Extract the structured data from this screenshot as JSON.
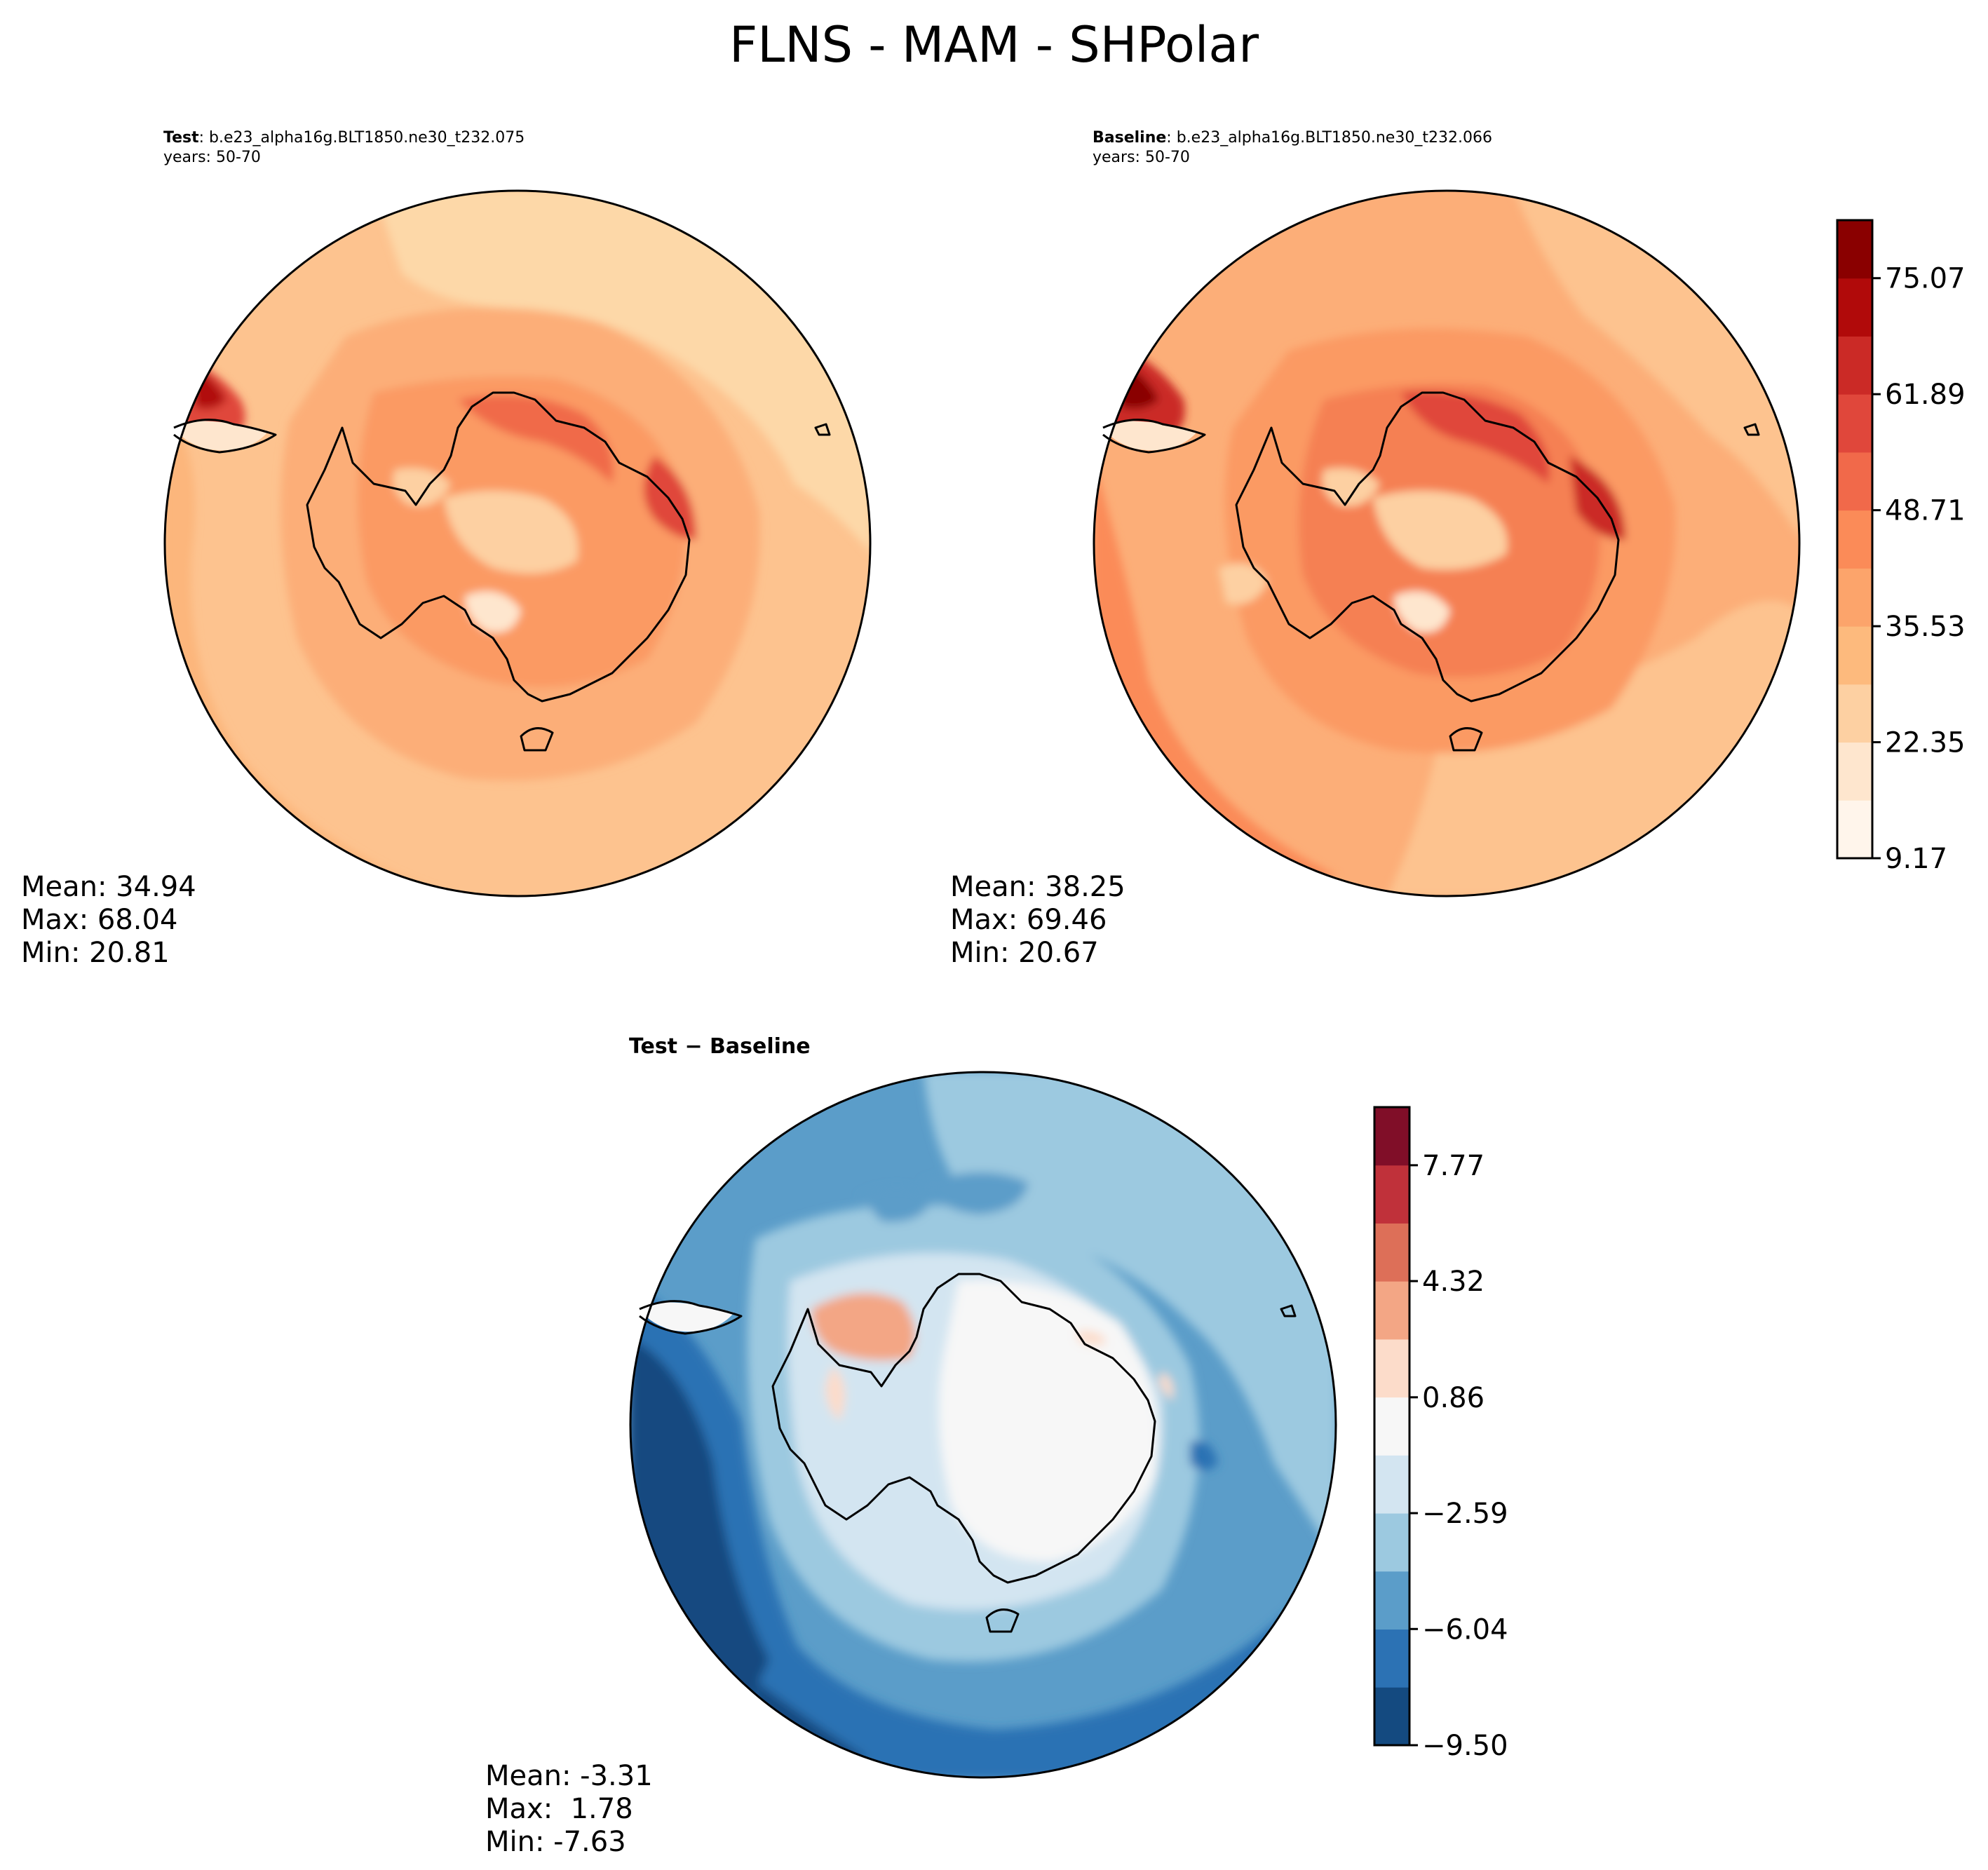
{
  "figure": {
    "title": "FLNS - MAM - SHPolar"
  },
  "panels": {
    "test": {
      "label": "Test",
      "case": ": b.e23_alpha16g.BLT1850.ne30_t232.075",
      "years": "years: 50-70",
      "stats": {
        "mean": "Mean: 34.94",
        "max": "Max: 68.04",
        "min": "Min: 20.81"
      }
    },
    "baseline": {
      "label": "Baseline",
      "case": ": b.e23_alpha16g.BLT1850.ne30_t232.066",
      "years": "years: 50-70",
      "stats": {
        "mean": "Mean: 38.25",
        "max": "Max: 69.46",
        "min": "Min: 20.67"
      }
    },
    "diff": {
      "title": "Test − Baseline",
      "stats": {
        "mean": "Mean: -3.31",
        "max": "Max:  1.78",
        "min": "Min: -7.63"
      }
    }
  },
  "chart_data": [
    {
      "type": "heatmap",
      "projection": "south polar stereographic",
      "title": "Test : b.e23_alpha16g.BLT1850.ne30_t232.075 years: 50-70",
      "stats": {
        "mean": 34.94,
        "max": 68.04,
        "min": 20.81
      },
      "colorbar": "shared with baseline"
    },
    {
      "type": "heatmap",
      "projection": "south polar stereographic",
      "title": "Baseline : b.e23_alpha16g.BLT1850.ne30_t232.066 years: 50-70",
      "stats": {
        "mean": 38.25,
        "max": 69.46,
        "min": 20.67
      },
      "colorbar": {
        "cmap": "Reds",
        "range": [
          9.17,
          81.66
        ],
        "tick_labels": [
          "9.17",
          "22.35",
          "35.53",
          "48.71",
          "61.89",
          "75.07"
        ],
        "tick_values": [
          9.17,
          22.35,
          35.53,
          48.71,
          61.89,
          75.07
        ],
        "levels": 11,
        "colors": [
          "#fff5eb",
          "#fee6ce",
          "#fdd0a2",
          "#fdba7d",
          "#fca46b",
          "#fb8b58",
          "#f1694a",
          "#e0473b",
          "#cb2a26",
          "#b10a0a",
          "#8a0000"
        ]
      }
    },
    {
      "type": "heatmap",
      "projection": "south polar stereographic",
      "title": "Test − Baseline",
      "stats": {
        "mean": -3.31,
        "max": 1.78,
        "min": -7.63
      },
      "colorbar": {
        "cmap": "RdBu_r",
        "range": [
          -9.5,
          9.5
        ],
        "tick_labels": [
          "−9.50",
          "−6.04",
          "−2.59",
          "0.86",
          "4.32",
          "7.77"
        ],
        "tick_values": [
          -9.5,
          -6.04,
          -2.59,
          0.86,
          4.32,
          7.77
        ],
        "levels": 11,
        "colors": [
          "#144a80",
          "#2c72b4",
          "#5b9dc9",
          "#9cc9e0",
          "#d3e5f1",
          "#f7f7f7",
          "#fcdcca",
          "#f3a685",
          "#dd6f58",
          "#c0313a",
          "#800e28"
        ]
      }
    }
  ]
}
